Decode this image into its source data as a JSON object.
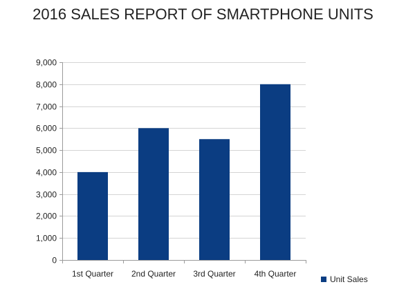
{
  "chart_data": {
    "type": "bar",
    "title": "2016 SALES REPORT OF SMARTPHONE UNITS",
    "xlabel": "",
    "ylabel": "",
    "categories": [
      "1st Quarter",
      "2nd Quarter",
      "3rd Quarter",
      "4th Quarter"
    ],
    "series": [
      {
        "name": "Unit Sales",
        "values": [
          4000,
          6000,
          5500,
          8000
        ],
        "color": "#0b3d82"
      }
    ],
    "ylim": [
      0,
      9000
    ],
    "y_ticks": [
      0,
      1000,
      2000,
      3000,
      4000,
      5000,
      6000,
      7000,
      8000,
      9000
    ],
    "y_tick_labels": [
      "0",
      "1,000",
      "2,000",
      "3,000",
      "4,000",
      "5,000",
      "6,000",
      "7,000",
      "8,000",
      "9,000"
    ],
    "grid": true,
    "legend_position": "bottom-right",
    "colors": {
      "bar": "#0b3d82",
      "grid": "#d4d4d4",
      "axis": "#9a9a9a"
    }
  }
}
